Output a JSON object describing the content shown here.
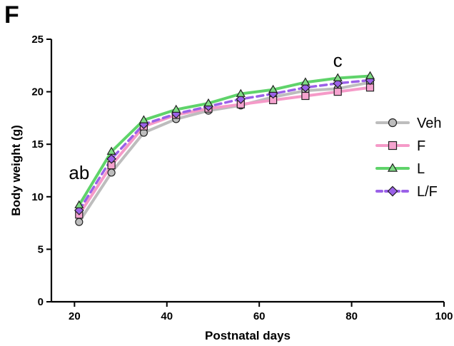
{
  "panel_label": "F",
  "chart_data": {
    "type": "line",
    "xlabel": "Postnatal days",
    "ylabel": "Body weight (g)",
    "xlim": [
      15,
      100
    ],
    "ylim": [
      0,
      25
    ],
    "xticks": [
      20,
      40,
      60,
      80,
      100
    ],
    "yticks": [
      0,
      5,
      10,
      15,
      20,
      25
    ],
    "grid": false,
    "legend_position": "right",
    "x": [
      21,
      28,
      35,
      42,
      49,
      56,
      63,
      70,
      77,
      84
    ],
    "series": [
      {
        "name": "Veh",
        "color": "#bdbdbd",
        "marker_fill": "#bdbdbd",
        "marker": "circle",
        "dashed": false,
        "values": [
          7.6,
          12.3,
          16.1,
          17.4,
          18.2,
          18.7,
          19.5,
          20.1,
          20.3,
          20.9
        ]
      },
      {
        "name": "F",
        "color": "#f59ac8",
        "marker_fill": "#f5a3cf",
        "marker": "square",
        "dashed": false,
        "values": [
          8.3,
          13.0,
          16.7,
          17.8,
          18.4,
          18.8,
          19.2,
          19.6,
          20.0,
          20.4
        ]
      },
      {
        "name": "L",
        "color": "#5fd36a",
        "marker_fill": "#7fdc84",
        "marker": "triangle",
        "dashed": false,
        "values": [
          9.2,
          14.3,
          17.3,
          18.3,
          18.9,
          19.8,
          20.2,
          20.9,
          21.3,
          21.5
        ]
      },
      {
        "name": "L/F",
        "color": "#9b61e8",
        "marker_fill": "#9b61e8",
        "marker": "diamond",
        "dashed": true,
        "values": [
          8.7,
          13.6,
          16.9,
          17.9,
          18.6,
          19.3,
          19.8,
          20.4,
          20.8,
          21.1
        ]
      }
    ],
    "annotations": [
      {
        "text": "ab",
        "x": 21,
        "y": 12.3
      },
      {
        "text": "c",
        "x": 77,
        "y": 23.0
      }
    ]
  }
}
